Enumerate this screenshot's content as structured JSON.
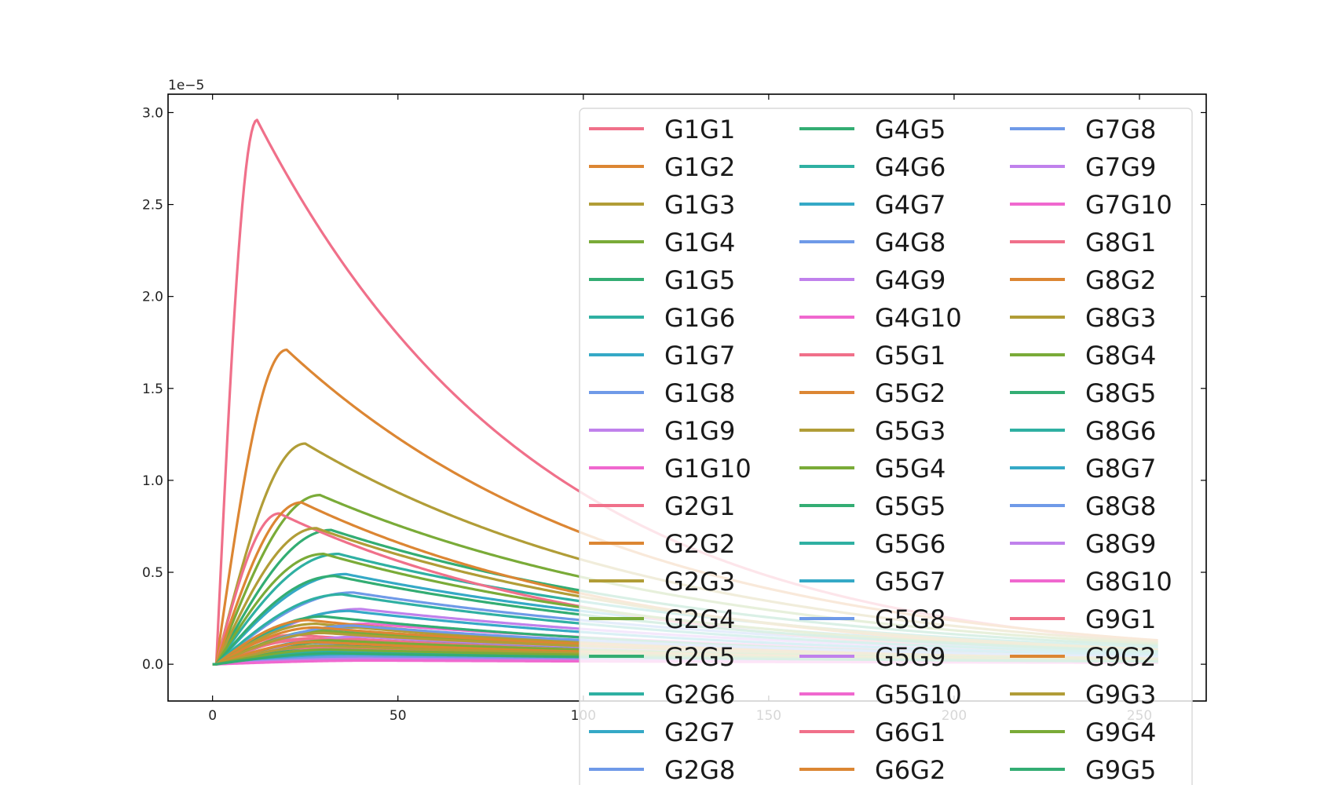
{
  "chart_data": {
    "type": "line",
    "title": "",
    "xlabel": "",
    "ylabel": "",
    "y_offset_label": "1e−5",
    "xlim": [
      -12,
      268
    ],
    "ylim": [
      -0.2,
      3.1
    ],
    "xticks": [
      0,
      50,
      100,
      150,
      200,
      250
    ],
    "yticks": [
      0.0,
      0.5,
      1.0,
      1.5,
      2.0,
      2.5,
      3.0
    ],
    "xtick_labels": [
      "0",
      "50",
      "100",
      "150",
      "200",
      "250"
    ],
    "ytick_labels": [
      "0.0",
      "0.5",
      "1.0",
      "1.5",
      "2.0",
      "2.5",
      "3.0"
    ],
    "grid": false,
    "legend_position": "top-right",
    "legend_columns": 3,
    "x_range": [
      0,
      255
    ],
    "series": [
      {
        "name": "G1G1",
        "color": "#f0708a",
        "peak": 2.96,
        "t_peak": 12,
        "end": 0.12
      },
      {
        "name": "G1G2",
        "color": "#dc8633",
        "peak": 1.71,
        "t_peak": 20,
        "end": 0.13
      },
      {
        "name": "G1G3",
        "color": "#b19d37",
        "peak": 1.2,
        "t_peak": 25,
        "end": 0.12
      },
      {
        "name": "G1G4",
        "color": "#7aab38",
        "peak": 0.92,
        "t_peak": 29,
        "end": 0.11
      },
      {
        "name": "G1G5",
        "color": "#33ad73",
        "peak": 0.73,
        "t_peak": 32,
        "end": 0.1
      },
      {
        "name": "G1G6",
        "color": "#2fb0a2",
        "peak": 0.6,
        "t_peak": 34,
        "end": 0.09
      },
      {
        "name": "G1G7",
        "color": "#35a9c6",
        "peak": 0.49,
        "t_peak": 36,
        "end": 0.08
      },
      {
        "name": "G1G8",
        "color": "#6f9ae8",
        "peak": 0.39,
        "t_peak": 38,
        "end": 0.07
      },
      {
        "name": "G1G9",
        "color": "#c081ec",
        "peak": 0.3,
        "t_peak": 40,
        "end": 0.06
      },
      {
        "name": "G1G10",
        "color": "#f068cf",
        "peak": 0.22,
        "t_peak": 42,
        "end": 0.05
      },
      {
        "name": "G2G1",
        "color": "#f0708a",
        "peak": 0.82,
        "t_peak": 18,
        "end": 0.05
      },
      {
        "name": "G2G2",
        "color": "#dc8633",
        "peak": 0.88,
        "t_peak": 24,
        "end": 0.07
      },
      {
        "name": "G2G3",
        "color": "#b19d37",
        "peak": 0.74,
        "t_peak": 28,
        "end": 0.08
      },
      {
        "name": "G2G4",
        "color": "#7aab38",
        "peak": 0.6,
        "t_peak": 30,
        "end": 0.07
      },
      {
        "name": "G2G5",
        "color": "#33ad73",
        "peak": 0.48,
        "t_peak": 33,
        "end": 0.07
      },
      {
        "name": "G2G6",
        "color": "#2fb0a2",
        "peak": 0.38,
        "t_peak": 35,
        "end": 0.06
      },
      {
        "name": "G2G7",
        "color": "#35a9c6",
        "peak": 0.29,
        "t_peak": 37,
        "end": 0.05
      },
      {
        "name": "G2G8",
        "color": "#6f9ae8",
        "peak": 0.2,
        "t_peak": 39,
        "end": 0.04
      },
      {
        "name": "G4G5",
        "color": "#33ad73",
        "peak": 0.26,
        "t_peak": 30,
        "end": 0.04
      },
      {
        "name": "G4G6",
        "color": "#2fb0a2",
        "peak": 0.19,
        "t_peak": 32,
        "end": 0.035
      },
      {
        "name": "G4G7",
        "color": "#35a9c6",
        "peak": 0.14,
        "t_peak": 34,
        "end": 0.03
      },
      {
        "name": "G4G8",
        "color": "#6f9ae8",
        "peak": 0.11,
        "t_peak": 36,
        "end": 0.025
      },
      {
        "name": "G4G9",
        "color": "#c081ec",
        "peak": 0.08,
        "t_peak": 38,
        "end": 0.02
      },
      {
        "name": "G4G10",
        "color": "#f068cf",
        "peak": 0.06,
        "t_peak": 40,
        "end": 0.015
      },
      {
        "name": "G5G1",
        "color": "#f0708a",
        "peak": 0.16,
        "t_peak": 22,
        "end": 0.02
      },
      {
        "name": "G5G2",
        "color": "#dc8633",
        "peak": 0.24,
        "t_peak": 26,
        "end": 0.03
      },
      {
        "name": "G5G3",
        "color": "#b19d37",
        "peak": 0.22,
        "t_peak": 28,
        "end": 0.03
      },
      {
        "name": "G5G4",
        "color": "#7aab38",
        "peak": 0.18,
        "t_peak": 30,
        "end": 0.03
      },
      {
        "name": "G5G5",
        "color": "#33ad73",
        "peak": 0.12,
        "t_peak": 32,
        "end": 0.025
      },
      {
        "name": "G5G6",
        "color": "#2fb0a2",
        "peak": 0.09,
        "t_peak": 34,
        "end": 0.02
      },
      {
        "name": "G5G7",
        "color": "#35a9c6",
        "peak": 0.07,
        "t_peak": 36,
        "end": 0.018
      },
      {
        "name": "G5G8",
        "color": "#6f9ae8",
        "peak": 0.05,
        "t_peak": 38,
        "end": 0.015
      },
      {
        "name": "G5G9",
        "color": "#c081ec",
        "peak": 0.04,
        "t_peak": 40,
        "end": 0.012
      },
      {
        "name": "G5G10",
        "color": "#f068cf",
        "peak": 0.03,
        "t_peak": 42,
        "end": 0.01
      },
      {
        "name": "G6G1",
        "color": "#f0708a",
        "peak": 0.13,
        "t_peak": 24,
        "end": 0.02
      },
      {
        "name": "G6G2",
        "color": "#dc8633",
        "peak": 0.1,
        "t_peak": 28,
        "end": 0.02
      },
      {
        "name": "G7G8",
        "color": "#6f9ae8",
        "peak": 0.21,
        "t_peak": 38,
        "end": 0.04
      },
      {
        "name": "G7G9",
        "color": "#c081ec",
        "peak": 0.15,
        "t_peak": 40,
        "end": 0.03
      },
      {
        "name": "G7G10",
        "color": "#f068cf",
        "peak": 0.1,
        "t_peak": 42,
        "end": 0.025
      },
      {
        "name": "G8G1",
        "color": "#f0708a",
        "peak": 0.14,
        "t_peak": 26,
        "end": 0.02
      },
      {
        "name": "G8G2",
        "color": "#dc8633",
        "peak": 0.2,
        "t_peak": 28,
        "end": 0.03
      },
      {
        "name": "G8G3",
        "color": "#b19d37",
        "peak": 0.17,
        "t_peak": 30,
        "end": 0.03
      },
      {
        "name": "G8G4",
        "color": "#7aab38",
        "peak": 0.13,
        "t_peak": 32,
        "end": 0.025
      },
      {
        "name": "G8G5",
        "color": "#33ad73",
        "peak": 0.1,
        "t_peak": 34,
        "end": 0.02
      },
      {
        "name": "G8G6",
        "color": "#2fb0a2",
        "peak": 0.075,
        "t_peak": 36,
        "end": 0.018
      },
      {
        "name": "G8G7",
        "color": "#35a9c6",
        "peak": 0.055,
        "t_peak": 38,
        "end": 0.015
      },
      {
        "name": "G8G8",
        "color": "#6f9ae8",
        "peak": 0.04,
        "t_peak": 40,
        "end": 0.012
      },
      {
        "name": "G8G9",
        "color": "#c081ec",
        "peak": 0.03,
        "t_peak": 42,
        "end": 0.01
      },
      {
        "name": "G8G10",
        "color": "#f068cf",
        "peak": 0.02,
        "t_peak": 44,
        "end": 0.008
      },
      {
        "name": "G9G1",
        "color": "#f0708a",
        "peak": 0.09,
        "t_peak": 26,
        "end": 0.015
      },
      {
        "name": "G9G2",
        "color": "#dc8633",
        "peak": 0.12,
        "t_peak": 28,
        "end": 0.02
      },
      {
        "name": "G9G3",
        "color": "#b19d37",
        "peak": 0.1,
        "t_peak": 30,
        "end": 0.02
      },
      {
        "name": "G9G4",
        "color": "#7aab38",
        "peak": 0.08,
        "t_peak": 32,
        "end": 0.018
      },
      {
        "name": "G9G5",
        "color": "#33ad73",
        "peak": 0.06,
        "t_peak": 34,
        "end": 0.015
      }
    ]
  }
}
